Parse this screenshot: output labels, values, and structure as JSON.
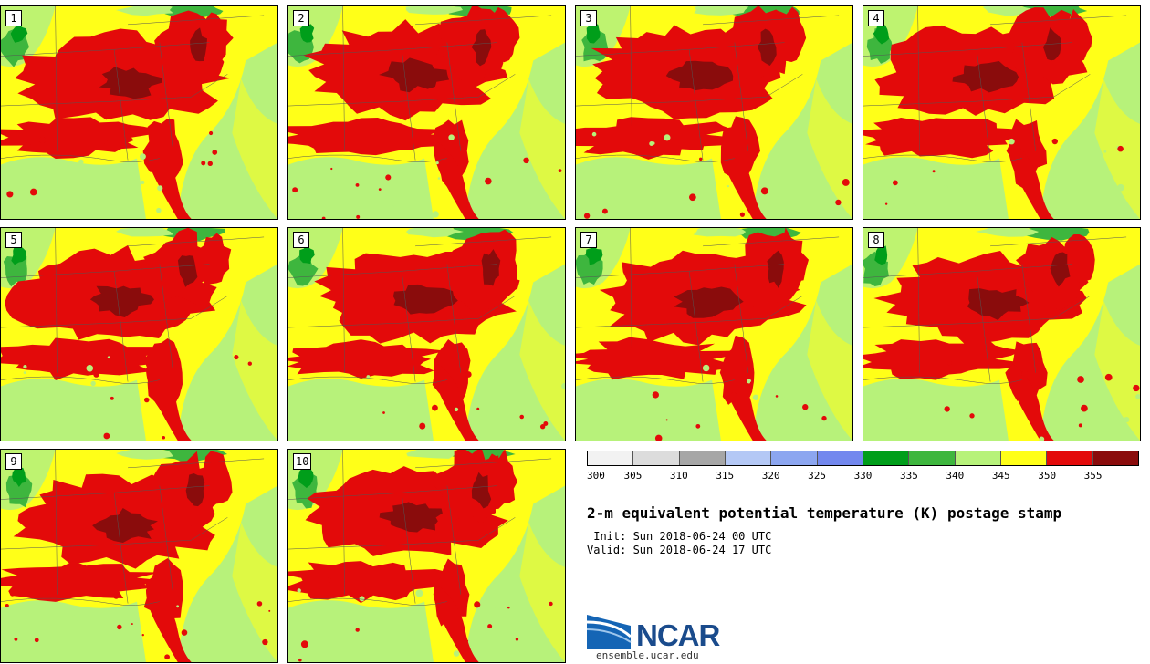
{
  "panels": [
    {
      "label": "1"
    },
    {
      "label": "2"
    },
    {
      "label": "3"
    },
    {
      "label": "4"
    },
    {
      "label": "5"
    },
    {
      "label": "6"
    },
    {
      "label": "7"
    },
    {
      "label": "8"
    },
    {
      "label": "9"
    },
    {
      "label": "10"
    }
  ],
  "colorbar": {
    "colors": [
      "#f2f2f2",
      "#dcdcdc",
      "#a6a6a6",
      "#b4c8f5",
      "#8ca6f0",
      "#7388ee",
      "#009e1a",
      "#3eb63e",
      "#b7f27a",
      "#ffff18",
      "#e30a0a",
      "#8a0c0c"
    ],
    "tick_labels": [
      "300",
      "305",
      "310",
      "315",
      "320",
      "325",
      "330",
      "335",
      "340",
      "345",
      "350",
      "355"
    ]
  },
  "title": "2-m equivalent potential temperature (K) postage stamp",
  "init": " Init: Sun 2018-06-24 00 UTC",
  "valid": "Valid: Sun 2018-06-24 17 UTC",
  "logo": {
    "text": "NCAR",
    "url": "ensemble.ucar.edu"
  }
}
